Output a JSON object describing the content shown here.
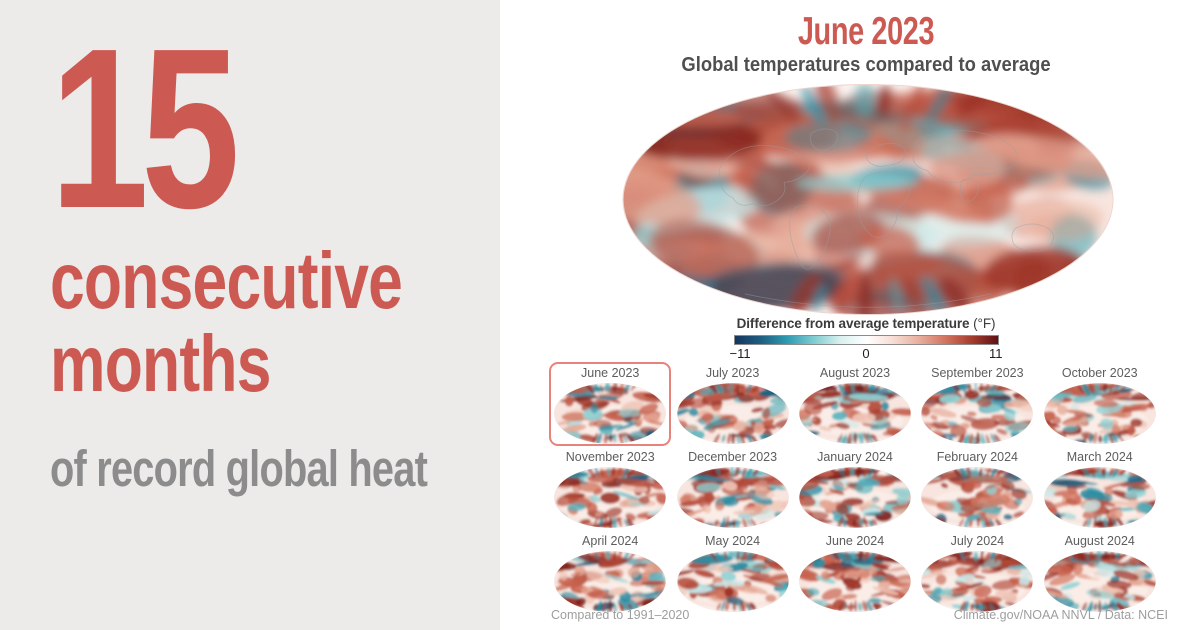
{
  "colors": {
    "accent": "#CD5A52",
    "headline_gray": "#8C8C8C",
    "panel_bg": "#ECEBEA",
    "label_gray": "#5D5D5D",
    "footnote_gray": "#9E9E9E",
    "highlight_border": "#E8837B"
  },
  "left_panel": {
    "headline_number": "15",
    "headline_line2": "consecutive",
    "headline_line3": "months",
    "subheadline": "of record global heat"
  },
  "main": {
    "title": "June 2023",
    "subtitle": "Global temperatures compared to average",
    "legend": {
      "label": "Difference from average temperature",
      "unit": " (°F)",
      "min": "−11",
      "mid": "0",
      "max": "11",
      "colors": [
        "#16355E",
        "#1E5F82",
        "#2F9CB2",
        "#7FCCD1",
        "#D9F0EF",
        "#FFFFFF",
        "#F6DED5",
        "#E8AE9D",
        "#D3745F",
        "#A63C2F",
        "#5F1115"
      ]
    },
    "small_multiples": {
      "months": [
        "June 2023",
        "July 2023",
        "August 2023",
        "September 2023",
        "October 2023",
        "November 2023",
        "December 2023",
        "January 2024",
        "February 2024",
        "March 2024",
        "April 2024",
        "May 2024",
        "June 2024",
        "July 2024",
        "August 2024"
      ],
      "highlighted": "June 2023"
    },
    "footnote_left": "Compared to 1991–2020",
    "footnote_right": "Climate.gov/NOAA NNVL / Data: NCEI"
  },
  "chart_data": {
    "type": "heatmap",
    "subtype": "global-temperature-anomaly-map-small-multiples",
    "title": "June 2023",
    "subtitle": "Global temperatures compared to average",
    "headline": "15 consecutive months of record global heat",
    "legend": {
      "label": "Difference from average temperature (°F)",
      "min": -11,
      "mid": 0,
      "max": 11,
      "units": "°F",
      "palette": "blue-white-red diverging"
    },
    "months": [
      "June 2023",
      "July 2023",
      "August 2023",
      "September 2023",
      "October 2023",
      "November 2023",
      "December 2023",
      "January 2024",
      "February 2024",
      "March 2024",
      "April 2024",
      "May 2024",
      "June 2024",
      "July 2024",
      "August 2024"
    ],
    "highlighted_month": "June 2023",
    "baseline_period": "1991–2020",
    "source": "Climate.gov/NOAA NNVL / Data: NCEI"
  }
}
